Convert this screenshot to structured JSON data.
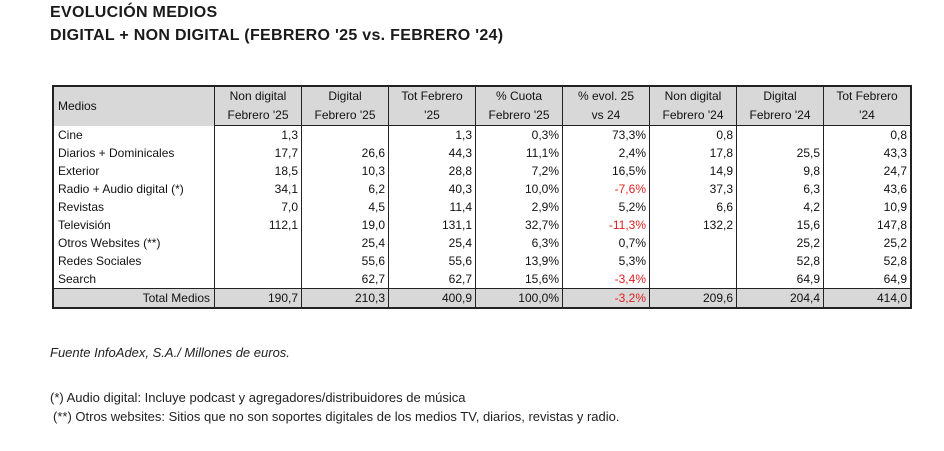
{
  "title": {
    "line1": "EVOLUCIÓN MEDIOS",
    "line2": "DIGITAL + NON DIGITAL (FEBRERO '25 vs. FEBRERO '24)"
  },
  "table": {
    "header_medios": "Medios",
    "headers": [
      [
        "Non digital",
        "Febrero '25"
      ],
      [
        "Digital",
        "Febrero '25"
      ],
      [
        "Tot Febrero",
        "'25"
      ],
      [
        "% Cuota",
        "Febrero '25"
      ],
      [
        "% evol. 25",
        "vs 24"
      ],
      [
        "Non digital",
        "Febrero '24"
      ],
      [
        "Digital",
        "Febrero '24"
      ],
      [
        "Tot Febrero",
        "'24"
      ]
    ],
    "rows": [
      {
        "name": "Cine",
        "cells": [
          "1,3",
          "",
          "1,3",
          "0,3%",
          "73,3%",
          "0,8",
          "",
          "0,8"
        ],
        "neg": false
      },
      {
        "name": "Diarios + Dominicales",
        "cells": [
          "17,7",
          "26,6",
          "44,3",
          "11,1%",
          "2,4%",
          "17,8",
          "25,5",
          "43,3"
        ],
        "neg": false
      },
      {
        "name": "Exterior",
        "cells": [
          "18,5",
          "10,3",
          "28,8",
          "7,2%",
          "16,5%",
          "14,9",
          "9,8",
          "24,7"
        ],
        "neg": false
      },
      {
        "name": "Radio + Audio digital (*)",
        "cells": [
          "34,1",
          "6,2",
          "40,3",
          "10,0%",
          "-7,6%",
          "37,3",
          "6,3",
          "43,6"
        ],
        "neg": true
      },
      {
        "name": "Revistas",
        "cells": [
          "7,0",
          "4,5",
          "11,4",
          "2,9%",
          "5,2%",
          "6,6",
          "4,2",
          "10,9"
        ],
        "neg": false
      },
      {
        "name": "Televisión",
        "cells": [
          "112,1",
          "19,0",
          "131,1",
          "32,7%",
          "-11,3%",
          "132,2",
          "15,6",
          "147,8"
        ],
        "neg": true
      },
      {
        "name": "Otros Websites (**)",
        "cells": [
          "",
          "25,4",
          "25,4",
          "6,3%",
          "0,7%",
          "",
          "25,2",
          "25,2"
        ],
        "neg": false
      },
      {
        "name": "Redes Sociales",
        "cells": [
          "",
          "55,6",
          "55,6",
          "13,9%",
          "5,3%",
          "",
          "52,8",
          "52,8"
        ],
        "neg": false
      },
      {
        "name": "Search",
        "cells": [
          "",
          "62,7",
          "62,7",
          "15,6%",
          "-3,4%",
          "",
          "64,9",
          "64,9"
        ],
        "neg": true
      }
    ],
    "total": {
      "name": "Total Medios",
      "cells": [
        "190,7",
        "210,3",
        "400,9",
        "100,0%",
        "-3,2%",
        "209,6",
        "204,4",
        "414,0"
      ],
      "neg": true
    }
  },
  "source": "Fuente InfoAdex, S.A./ Millones de euros.",
  "notes": [
    "(*) Audio digital: Incluye podcast y agregadores/distribuidores de música",
    "(**) Otros websites: Sitios que no son soportes digitales de los medios TV, diarios, revistas y radio."
  ],
  "colors": {
    "negative": "#e02020",
    "header_bg": "#d8d8d8"
  }
}
